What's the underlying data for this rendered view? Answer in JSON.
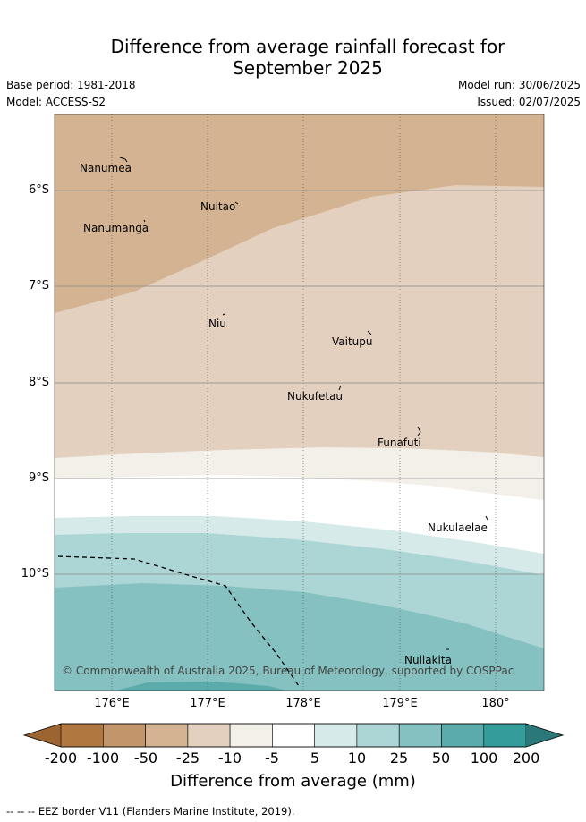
{
  "header": {
    "title_line1": "Difference from average rainfall forecast for",
    "title_line2": "September 2025",
    "base_period": "Base period: 1981-2018",
    "model": "Model: ACCESS-S2",
    "model_run": "Model run: 30/06/2025",
    "issued": "Issued: 02/07/2025"
  },
  "map": {
    "lat_labels": [
      "6°S",
      "7°S",
      "8°S",
      "9°S",
      "10°S"
    ],
    "lon_labels": [
      "176°E",
      "177°E",
      "178°E",
      "179°E",
      "180°"
    ],
    "places": [
      "Nanumea",
      "Nuitao",
      "Nanumanga",
      "Niu",
      "Vaitupu",
      "Nukufetau",
      "Funafuti",
      "Nukulaelae",
      "Nuilakita"
    ],
    "copyright": "© Commonwealth of Australia 2025, Bureau of Meteorology, supported by COSPPac"
  },
  "colorbar": {
    "ticks": [
      "-200",
      "-100",
      "-50",
      "-25",
      "-10",
      "-5",
      "5",
      "10",
      "25",
      "50",
      "100",
      "200"
    ],
    "colors": [
      "#9c6430",
      "#b07840",
      "#c2956a",
      "#d3b391",
      "#e3d0bf",
      "#f3efe9",
      "#ffffff",
      "#d5eae9",
      "#acd6d5",
      "#84c1c0",
      "#5babaa",
      "#349c9a",
      "#2a7878"
    ],
    "label": "Difference from average (mm)"
  },
  "footer": {
    "legend_line": "-- -- -- EEZ border V11 (Flanders Marine Institute, 2019)."
  }
}
